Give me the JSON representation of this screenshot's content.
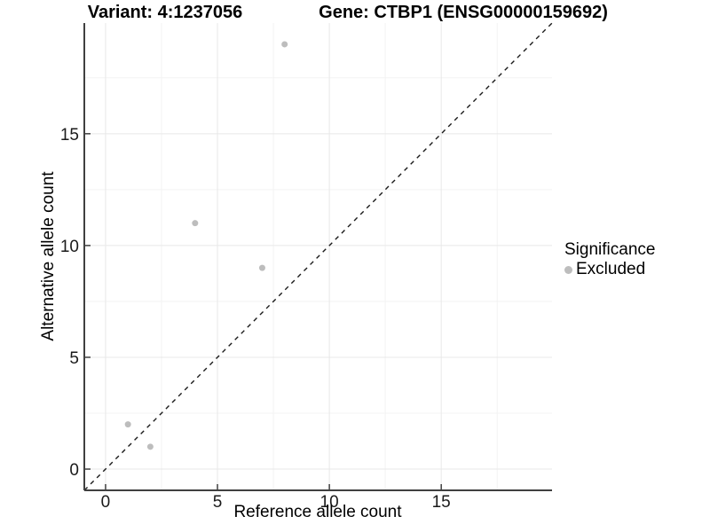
{
  "plot": {
    "title_left": "Variant: 4:1237056",
    "title_right": "Gene: CTBP1 (ENSG00000159692)"
  },
  "legend": {
    "title": "Significance",
    "items": [
      {
        "label": "Excluded",
        "color": "#bdbdbd"
      }
    ]
  },
  "chart_data": {
    "type": "scatter",
    "title": "Variant: 4:1237056  |  Gene: CTBP1 (ENSG00000159692)",
    "xlabel": "Reference allele count",
    "ylabel": "Alternative allele count",
    "series": [
      {
        "name": "Excluded",
        "color": "#bdbdbd",
        "points": [
          {
            "x": 1,
            "y": 2
          },
          {
            "x": 2,
            "y": 1
          },
          {
            "x": 4,
            "y": 11
          },
          {
            "x": 7,
            "y": 9
          },
          {
            "x": 8,
            "y": 19
          }
        ]
      }
    ],
    "xlim": [
      -0.95,
      19.95
    ],
    "ylim": [
      -0.95,
      19.95
    ],
    "x_ticks": [
      0,
      5,
      10,
      15
    ],
    "y_ticks": [
      0,
      5,
      10,
      15
    ],
    "x_minor_ticks": [
      2.5,
      7.5,
      12.5,
      17.5
    ],
    "y_minor_ticks": [
      2.5,
      7.5,
      12.5,
      17.5
    ],
    "identity_line": {
      "style": "dashed",
      "x1": -0.95,
      "y1": -0.95,
      "x2": 19.95,
      "y2": 19.95
    },
    "grid": true,
    "legend_position": "right",
    "colors": {
      "point": "#bdbdbd",
      "grid_major": "#e8e8e8",
      "grid_minor": "#f3f3f3",
      "axis_line": "#404040",
      "tick_label": "#1a1a1a",
      "identity_line": "#1a1a1a",
      "panel_background": "#ffffff"
    }
  }
}
